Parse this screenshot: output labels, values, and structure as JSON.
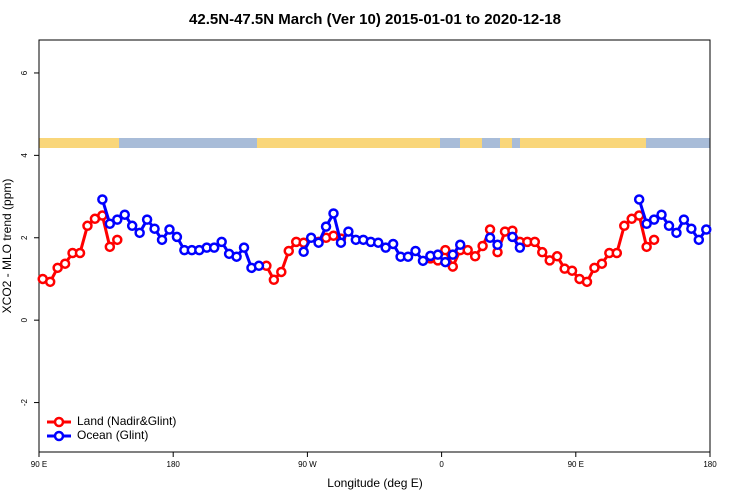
{
  "chart_data": {
    "type": "line",
    "title": "42.5N-47.5N March (Ver 10)   2015-01-01 to 2020-12-18",
    "x_label": "Longitude (deg E)",
    "y_label": "XCO2 - MLO trend (ppm)",
    "x": [
      92.5,
      97.5,
      102.5,
      107.5,
      112.5,
      117.5,
      122.5,
      127.5,
      132.5,
      137.5,
      142.5,
      147.5,
      152.5,
      157.5,
      162.5,
      167.5,
      172.5,
      177.5,
      182.5,
      187.5,
      192.5,
      197.5,
      202.5,
      207.5,
      212.5,
      217.5,
      222.5,
      227.5,
      232.5,
      237.5,
      242.5,
      247.5,
      252.5,
      257.5,
      262.5,
      267.5,
      272.5,
      277.5,
      282.5,
      287.5,
      292.5,
      297.5,
      302.5,
      307.5,
      312.5,
      317.5,
      322.5,
      327.5,
      332.5,
      337.5,
      342.5,
      347.5,
      352.5,
      357.5,
      362.5,
      367.5,
      372.5,
      377.5,
      382.5,
      387.5,
      392.5,
      397.5,
      402.5,
      407.5,
      412.5,
      417.5,
      422.5,
      427.5,
      432.5,
      437.5,
      442.5,
      447.5,
      452.5,
      457.5,
      462.5,
      467.5,
      472.5,
      477.5,
      482.5,
      487.5,
      492.5,
      497.5,
      502.5,
      507.5,
      512.5,
      517.5,
      522.5,
      527.5,
      532.5,
      537.5
    ],
    "series": [
      {
        "name": "Land (Nadir&Glint)",
        "color": "#ff0000",
        "values": [
          1.0,
          0.93,
          1.27,
          1.37,
          1.63,
          1.63,
          2.29,
          2.46,
          2.54,
          1.78,
          1.95,
          null,
          null,
          null,
          null,
          null,
          null,
          null,
          null,
          null,
          null,
          null,
          null,
          null,
          null,
          null,
          null,
          null,
          null,
          null,
          1.32,
          0.98,
          1.17,
          1.68,
          1.9,
          1.88,
          null,
          1.9,
          2.0,
          2.05,
          1.98,
          null,
          null,
          null,
          null,
          null,
          null,
          null,
          null,
          null,
          null,
          null,
          1.5,
          1.45,
          1.7,
          1.3,
          1.7,
          1.7,
          1.55,
          1.8,
          2.2,
          1.65,
          2.15,
          2.17,
          1.9,
          1.9,
          1.9,
          1.65,
          1.45,
          1.55,
          1.25,
          1.2,
          1.0,
          0.93,
          1.27,
          1.37,
          1.63,
          1.63,
          2.29,
          2.46,
          2.54,
          1.78,
          1.95,
          null,
          null,
          null,
          null,
          null,
          null,
          null
        ]
      },
      {
        "name": "Ocean (Glint)",
        "color": "#0000ff",
        "values": [
          null,
          null,
          null,
          null,
          null,
          null,
          null,
          null,
          2.93,
          2.34,
          2.44,
          2.56,
          2.29,
          2.12,
          2.44,
          2.22,
          1.95,
          2.2,
          2.02,
          1.7,
          1.7,
          1.7,
          1.76,
          1.76,
          1.9,
          1.61,
          1.54,
          1.76,
          1.27,
          1.32,
          null,
          null,
          null,
          null,
          null,
          1.66,
          2.0,
          1.88,
          2.27,
          2.59,
          1.88,
          2.15,
          1.95,
          1.95,
          1.9,
          1.88,
          1.76,
          1.85,
          1.54,
          1.54,
          1.68,
          1.44,
          1.56,
          1.59,
          1.41,
          1.59,
          1.83,
          null,
          null,
          null,
          2.0,
          1.83,
          null,
          2.02,
          1.76,
          null,
          null,
          null,
          null,
          null,
          null,
          null,
          null,
          null,
          null,
          null,
          null,
          null,
          null,
          null,
          2.93,
          2.34,
          2.44,
          2.56,
          2.29,
          2.12,
          2.44,
          2.22,
          1.95,
          2.2
        ]
      }
    ],
    "xlim": [
      90,
      540
    ],
    "ylim": [
      -3.2,
      6.8
    ],
    "xticks": [
      {
        "value": 90,
        "label": "90 E"
      },
      {
        "value": 180,
        "label": "180"
      },
      {
        "value": 270,
        "label": "90 W"
      },
      {
        "value": 360,
        "label": "0"
      },
      {
        "value": 450,
        "label": "90 E"
      },
      {
        "value": 540,
        "label": "180"
      }
    ],
    "yticks": [
      -2,
      0,
      2,
      4,
      6
    ],
    "legend": "bottom-left"
  }
}
